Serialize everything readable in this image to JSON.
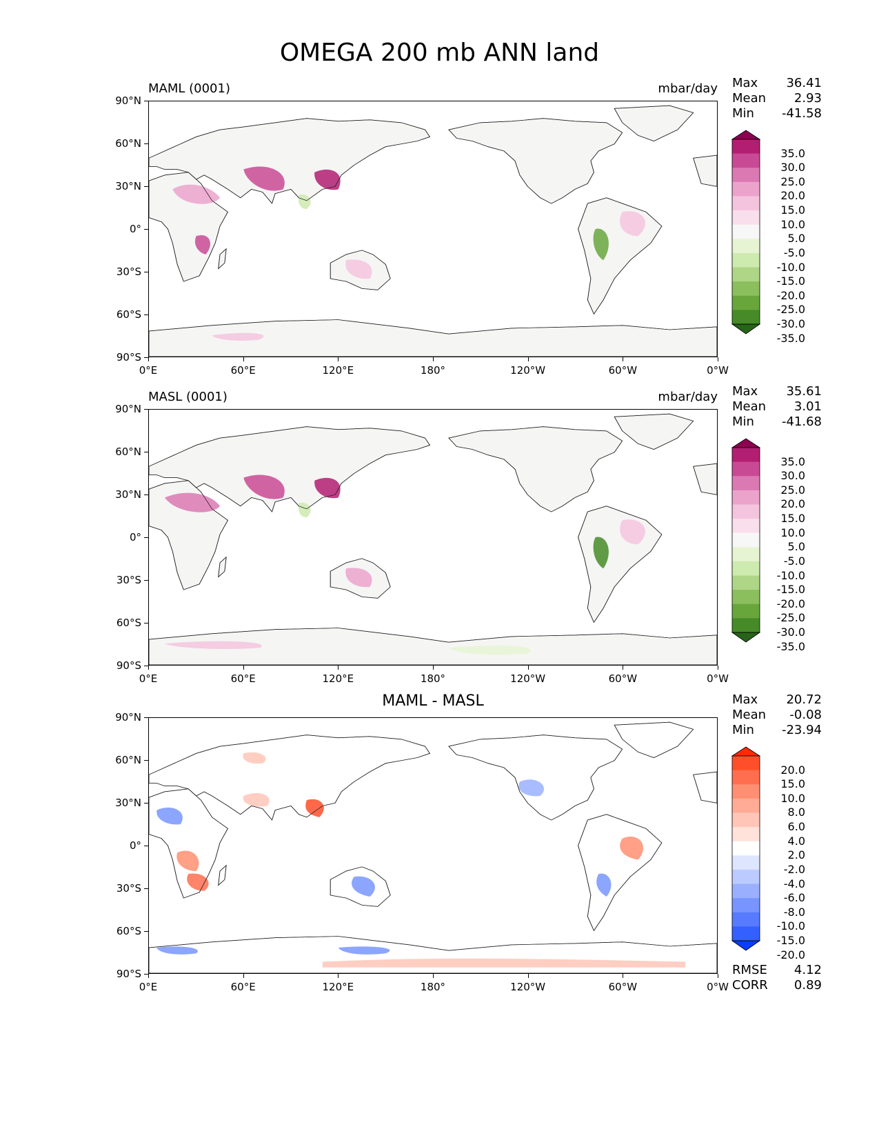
{
  "title": "OMEGA 200 mb ANN land",
  "x_ticks": [
    "0°E",
    "60°E",
    "120°E",
    "180°",
    "120°W",
    "60°W",
    "0°W"
  ],
  "y_ticks": [
    "90°N",
    "60°N",
    "30°N",
    "0°",
    "30°S",
    "60°S",
    "90°S"
  ],
  "panels": [
    {
      "name": "MAML (0001)",
      "units": "mbar/day",
      "stats": {
        "max_label": "Max",
        "max": "36.41",
        "mean_label": "Mean",
        "mean": "2.93",
        "min_label": "Min",
        "min": "-41.58"
      },
      "colorbar_labels": [
        "35.0",
        "30.0",
        "25.0",
        "20.0",
        "15.0",
        "10.0",
        "5.0",
        "-5.0",
        "-10.0",
        "-15.0",
        "-20.0",
        "-25.0",
        "-30.0",
        "-35.0"
      ],
      "colorbar_colors": [
        "#8e0152",
        "#b21f72",
        "#c94a94",
        "#db79b3",
        "#eba3cc",
        "#f4c4de",
        "#f9dfec",
        "#f7f7f7",
        "#e6f4d3",
        "#cdeaaf",
        "#aed686",
        "#8bbf5d",
        "#68a63c",
        "#468b27",
        "#276419"
      ]
    },
    {
      "name": "MASL (0001)",
      "units": "mbar/day",
      "stats": {
        "max_label": "Max",
        "max": "35.61",
        "mean_label": "Mean",
        "mean": "3.01",
        "min_label": "Min",
        "min": "-41.68"
      },
      "colorbar_labels": [
        "35.0",
        "30.0",
        "25.0",
        "20.0",
        "15.0",
        "10.0",
        "5.0",
        "-5.0",
        "-10.0",
        "-15.0",
        "-20.0",
        "-25.0",
        "-30.0",
        "-35.0"
      ],
      "colorbar_colors": [
        "#8e0152",
        "#b21f72",
        "#c94a94",
        "#db79b3",
        "#eba3cc",
        "#f4c4de",
        "#f9dfec",
        "#f7f7f7",
        "#e6f4d3",
        "#cdeaaf",
        "#aed686",
        "#8bbf5d",
        "#68a63c",
        "#468b27",
        "#276419"
      ]
    },
    {
      "name": "MAML - MASL",
      "units": "",
      "stats": {
        "max_label": "Max",
        "max": "20.72",
        "mean_label": "Mean",
        "mean": "-0.08",
        "min_label": "Min",
        "min": "-23.94",
        "rmse_label": "RMSE",
        "rmse": "4.12",
        "corr_label": "CORR",
        "corr": "0.89"
      },
      "colorbar_labels": [
        "20.0",
        "15.0",
        "10.0",
        "8.0",
        "6.0",
        "4.0",
        "2.0",
        "-2.0",
        "-4.0",
        "-6.0",
        "-8.0",
        "-10.0",
        "-15.0",
        "-20.0"
      ],
      "colorbar_colors": [
        "#ff2a00",
        "#ff4f2a",
        "#ff6f4f",
        "#ff8f72",
        "#ffab95",
        "#ffc6b8",
        "#ffe2da",
        "#ffffff",
        "#dde5ff",
        "#bccbff",
        "#9ab0ff",
        "#7895ff",
        "#567bff",
        "#3360ff",
        "#0a3dff"
      ]
    }
  ]
}
